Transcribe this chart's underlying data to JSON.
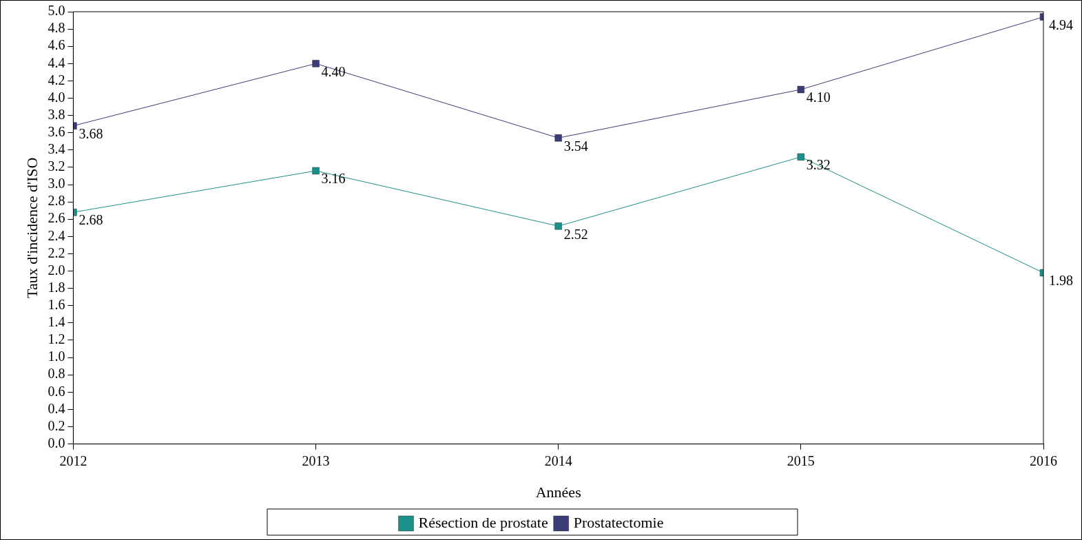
{
  "chart_data": {
    "type": "line",
    "xlabel": "Années",
    "ylabel": "Taux d'incidence d'ISO",
    "x": [
      2012,
      2013,
      2014,
      2015,
      2016
    ],
    "series": [
      {
        "name": "Résection de prostate",
        "color": "#1a9088",
        "values": [
          2.68,
          3.16,
          2.52,
          3.32,
          1.98
        ],
        "value_labels": [
          "2.68",
          "3.16",
          "2.52",
          "3.32",
          "1.98"
        ]
      },
      {
        "name": "Prostatectomie",
        "color": "#3b3b78",
        "values": [
          3.68,
          4.4,
          3.54,
          4.1,
          4.94
        ],
        "value_labels": [
          "3.68",
          "4.40",
          "3.54",
          "4.10",
          "4.94"
        ]
      }
    ],
    "xlim": [
      2012,
      2016
    ],
    "xticks": [
      2012,
      2013,
      2014,
      2015,
      2016
    ],
    "ylim": [
      0,
      5
    ],
    "yticks": [
      {
        "value": 0,
        "label": "0.0"
      },
      0.2,
      0.4,
      0.6,
      0.8,
      {
        "value": 1,
        "label": "1.0"
      },
      1.2,
      1.4,
      1.6,
      1.8,
      {
        "value": 2,
        "label": "2.0"
      },
      2.2,
      2.4,
      2.6,
      2.8,
      {
        "value": 3,
        "label": "3.0"
      },
      3.2,
      3.4,
      3.6,
      3.8,
      {
        "value": 4,
        "label": "4.0"
      },
      4.2,
      4.4,
      4.6,
      4.8,
      {
        "value": 5,
        "label": "5.0"
      }
    ],
    "grid": false,
    "legend": "bottom",
    "marker": "square",
    "line_style": "solid"
  }
}
